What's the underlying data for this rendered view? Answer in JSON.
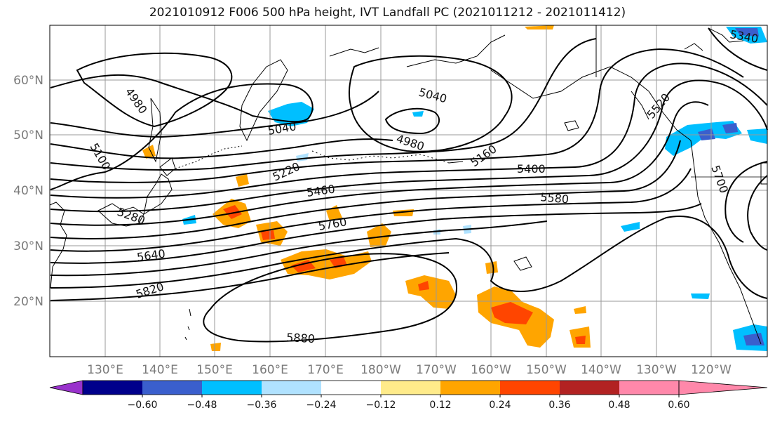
{
  "title": "2021010912 F006 500 hPa height, IVT Landfall PC (2021011212 - 2021011412)",
  "map": {
    "lat_labels": [
      "60°N",
      "50°N",
      "40°N",
      "30°N",
      "20°N"
    ],
    "lon_labels": [
      "130°E",
      "140°E",
      "150°E",
      "160°E",
      "170°E",
      "180°W",
      "170°W",
      "160°W",
      "150°W",
      "140°W",
      "130°W",
      "120°W"
    ],
    "contour_labels": [
      "4980",
      "5100",
      "5040",
      "5040",
      "4980",
      "5220",
      "5160",
      "5400",
      "5460",
      "5580",
      "5280",
      "5760",
      "5640",
      "5820",
      "5880",
      "5520",
      "5700",
      "5340"
    ]
  },
  "colorbar": {
    "ticks": [
      "−0.60",
      "−0.48",
      "−0.36",
      "−0.24",
      "−0.12",
      "0.12",
      "0.24",
      "0.36",
      "0.48",
      "0.60"
    ],
    "colors": [
      "#9932cc",
      "#00008b",
      "#3a5fcd",
      "#00bfff",
      "#b0e2ff",
      "#ffffff",
      "#ffeb8a",
      "#ffa500",
      "#ff4500",
      "#b22222",
      "#ff88aa",
      "#ff88aa"
    ]
  }
}
